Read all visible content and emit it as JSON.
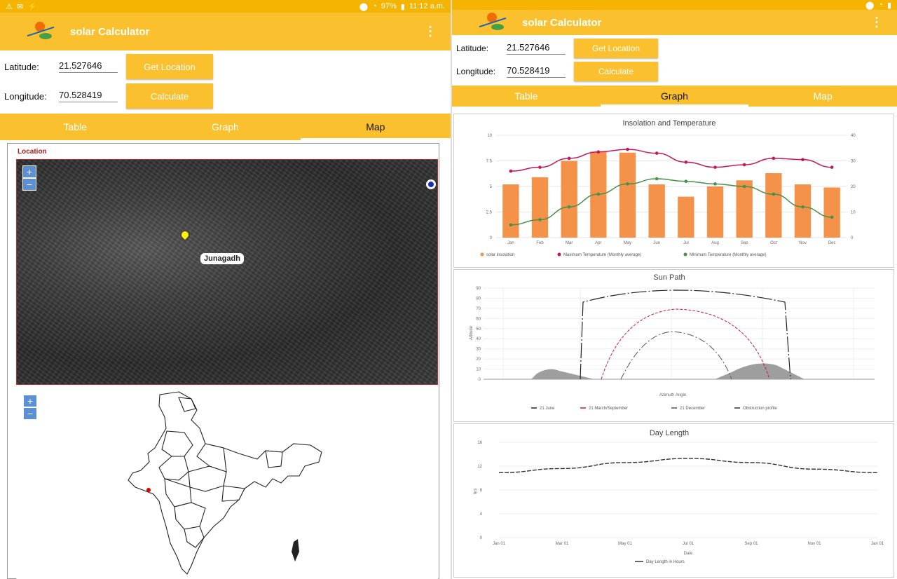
{
  "colors": {
    "brand": "#fbc02d",
    "statusbar": "#f4b400",
    "bar": "#f5924a",
    "maxline": "#c2185b",
    "minline": "#4a8f4a"
  },
  "left": {
    "status": {
      "time": "11:12 a.m.",
      "battery": "97%"
    },
    "appbar": {
      "title": "solar Calculator",
      "menu_icon": "overflow-menu-icon"
    },
    "latitude": {
      "label": "Latitude:",
      "value": "21.527646"
    },
    "longitude": {
      "label": "Longitude:",
      "value": "70.528419"
    },
    "buttons": {
      "get_location": "Get Location",
      "calculate": "Calculate"
    },
    "tabs": [
      {
        "label": "Table"
      },
      {
        "label": "Graph"
      },
      {
        "label": "Map"
      }
    ],
    "map": {
      "section_label": "Location",
      "city": "Junagadh",
      "zoom_in": "+",
      "zoom_out": "−"
    }
  },
  "right": {
    "appbar": {
      "title": "solar Calculator",
      "menu_icon": "overflow-menu-icon"
    },
    "latitude": {
      "label": "Latitude:",
      "value": "21.527646"
    },
    "longitude": {
      "label": "Longitude:",
      "value": "70.528419"
    },
    "buttons": {
      "get_location": "Get Location",
      "calculate": "Calculate"
    },
    "tabs": [
      {
        "label": "Table"
      },
      {
        "label": "Graph"
      },
      {
        "label": "Map"
      }
    ]
  },
  "chart_data": [
    {
      "type": "bar",
      "title": "Insolation and Temperature",
      "categories": [
        "Jan",
        "Feb",
        "Mar",
        "Apr",
        "May",
        "Jun",
        "Jul",
        "Aug",
        "Sep",
        "Oct",
        "Nov",
        "Dec"
      ],
      "series": [
        {
          "name": "solar insolation",
          "kind": "bar",
          "values": [
            5.2,
            5.9,
            7.5,
            8.4,
            8.3,
            5.2,
            4.0,
            5.0,
            5.6,
            6.3,
            5.2,
            4.9
          ]
        },
        {
          "name": "Maximum Temperature (Monthly average)",
          "kind": "line",
          "values": [
            26,
            27.5,
            31,
            33.5,
            34.5,
            33,
            29.5,
            27.5,
            28.5,
            31,
            30.5,
            27.5
          ]
        },
        {
          "name": "Minimum Temperature (Monthly average)",
          "kind": "line",
          "values": [
            5,
            7,
            12,
            17,
            21,
            23,
            22,
            21,
            20,
            17,
            12,
            8
          ]
        }
      ],
      "ylim_left": [
        0,
        10
      ],
      "ylim_right": [
        0,
        40
      ],
      "legend": "bottom"
    },
    {
      "type": "line",
      "title": "Sun Path",
      "xlabel": "Azimuth Angle",
      "ylabel": "Altitude",
      "ylim": [
        0,
        90
      ],
      "series": [
        {
          "name": "21 June"
        },
        {
          "name": "21 March/September"
        },
        {
          "name": "21 December"
        },
        {
          "name": "Obstruction profile"
        }
      ],
      "legend": "bottom"
    },
    {
      "type": "line",
      "title": "Day Length",
      "x": [
        "Jan 01",
        "Mar 01",
        "May 01",
        "Jul 01",
        "Sep 01",
        "Nov 01",
        "Jan 01"
      ],
      "xlabel": "Date",
      "ylabel": "hrs",
      "series": [
        {
          "name": "Day Length in Hours",
          "values": [
            10.9,
            11.6,
            12.6,
            13.3,
            12.6,
            11.5,
            10.9
          ]
        }
      ],
      "ylim": [
        0,
        16
      ],
      "legend": "bottom"
    }
  ]
}
